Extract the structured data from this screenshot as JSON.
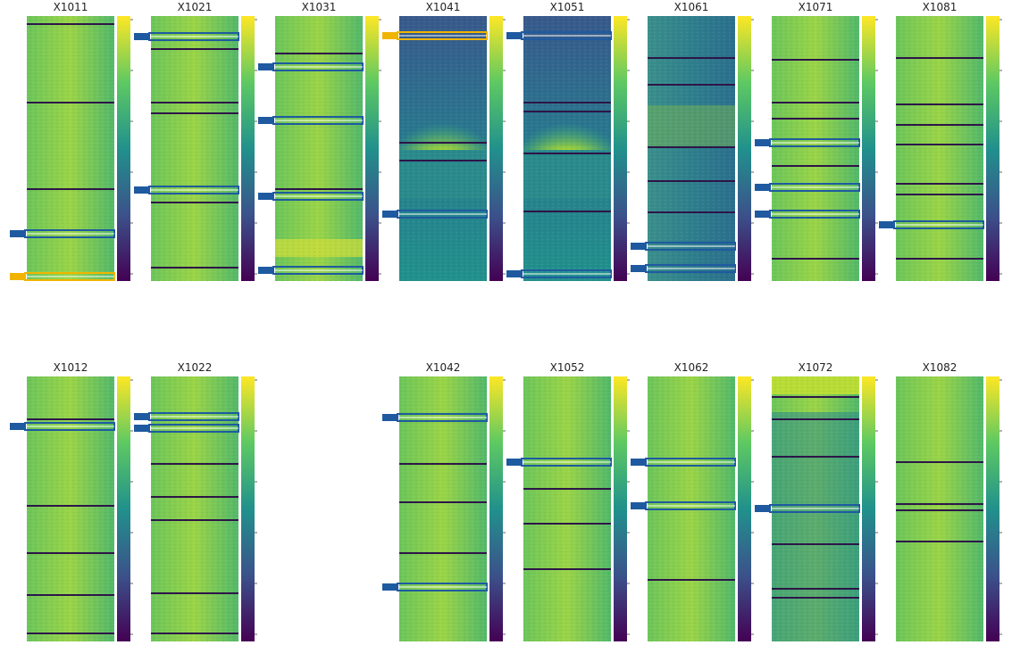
{
  "panels": [
    {
      "title": "X1011"
    },
    {
      "title": "X1021"
    },
    {
      "title": "X1031"
    },
    {
      "title": "X1041"
    },
    {
      "title": "X1051"
    },
    {
      "title": "X1061"
    },
    {
      "title": "X1071"
    },
    {
      "title": "X1081"
    },
    {
      "title": "X1012"
    },
    {
      "title": "X1022"
    },
    {
      "title": "X1042"
    },
    {
      "title": "X1052"
    },
    {
      "title": "X1062"
    },
    {
      "title": "X1072"
    },
    {
      "title": "X1082"
    }
  ]
}
